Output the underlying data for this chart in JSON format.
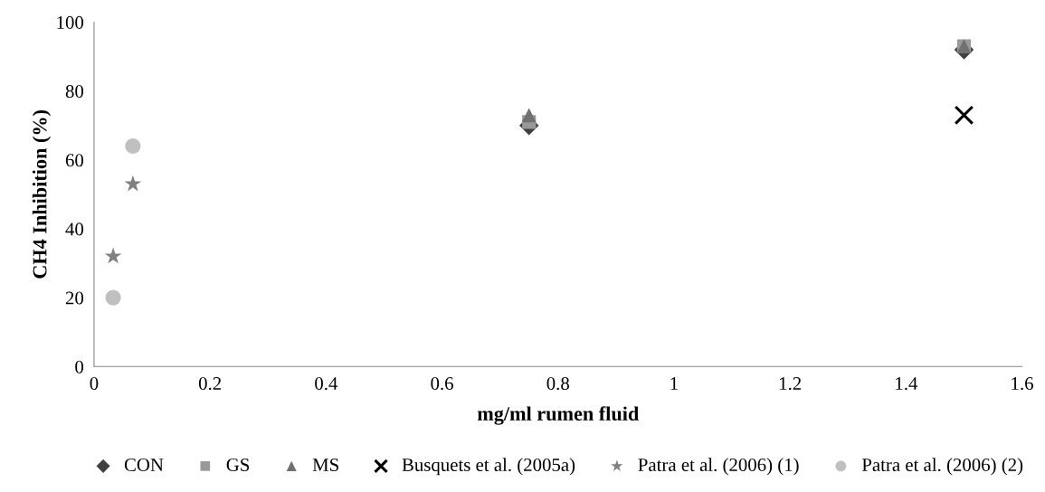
{
  "chart_data": {
    "type": "scatter",
    "xlabel": "mg/ml rumen fluid",
    "ylabel": "CH4 Inhibition (%)",
    "xlim": [
      0,
      1.6
    ],
    "xticks": [
      0,
      0.2,
      0.4,
      0.6,
      0.8,
      1,
      1.2,
      1.4,
      1.6
    ],
    "ylim": [
      0,
      100
    ],
    "yticks": [
      0,
      20,
      40,
      60,
      80,
      100
    ],
    "grid": false,
    "legend": "bottom",
    "series": [
      {
        "name": "CON",
        "color": "#404040",
        "marker": "diamond",
        "x": [
          0.75,
          1.5
        ],
        "values": [
          70,
          92
        ]
      },
      {
        "name": "GS",
        "color": "#999999",
        "marker": "square",
        "x": [
          0.75,
          1.5
        ],
        "values": [
          71,
          93
        ]
      },
      {
        "name": "MS",
        "color": "#707070",
        "marker": "triangle",
        "x": [
          0.75,
          1.5
        ],
        "values": [
          73,
          93
        ]
      },
      {
        "name": "Busquets et al. (2005a)",
        "color": "#000000",
        "marker": "cross",
        "x": [
          1.5
        ],
        "values": [
          73
        ]
      },
      {
        "name": "Patra et al. (2006) (1)",
        "color": "#808080",
        "marker": "star",
        "x": [
          0.033,
          0.067
        ],
        "values": [
          32,
          53
        ]
      },
      {
        "name": "Patra et al. (2006) (2)",
        "color": "#c0c0c0",
        "marker": "circle",
        "x": [
          0.033,
          0.067
        ],
        "values": [
          20,
          64
        ]
      }
    ]
  }
}
